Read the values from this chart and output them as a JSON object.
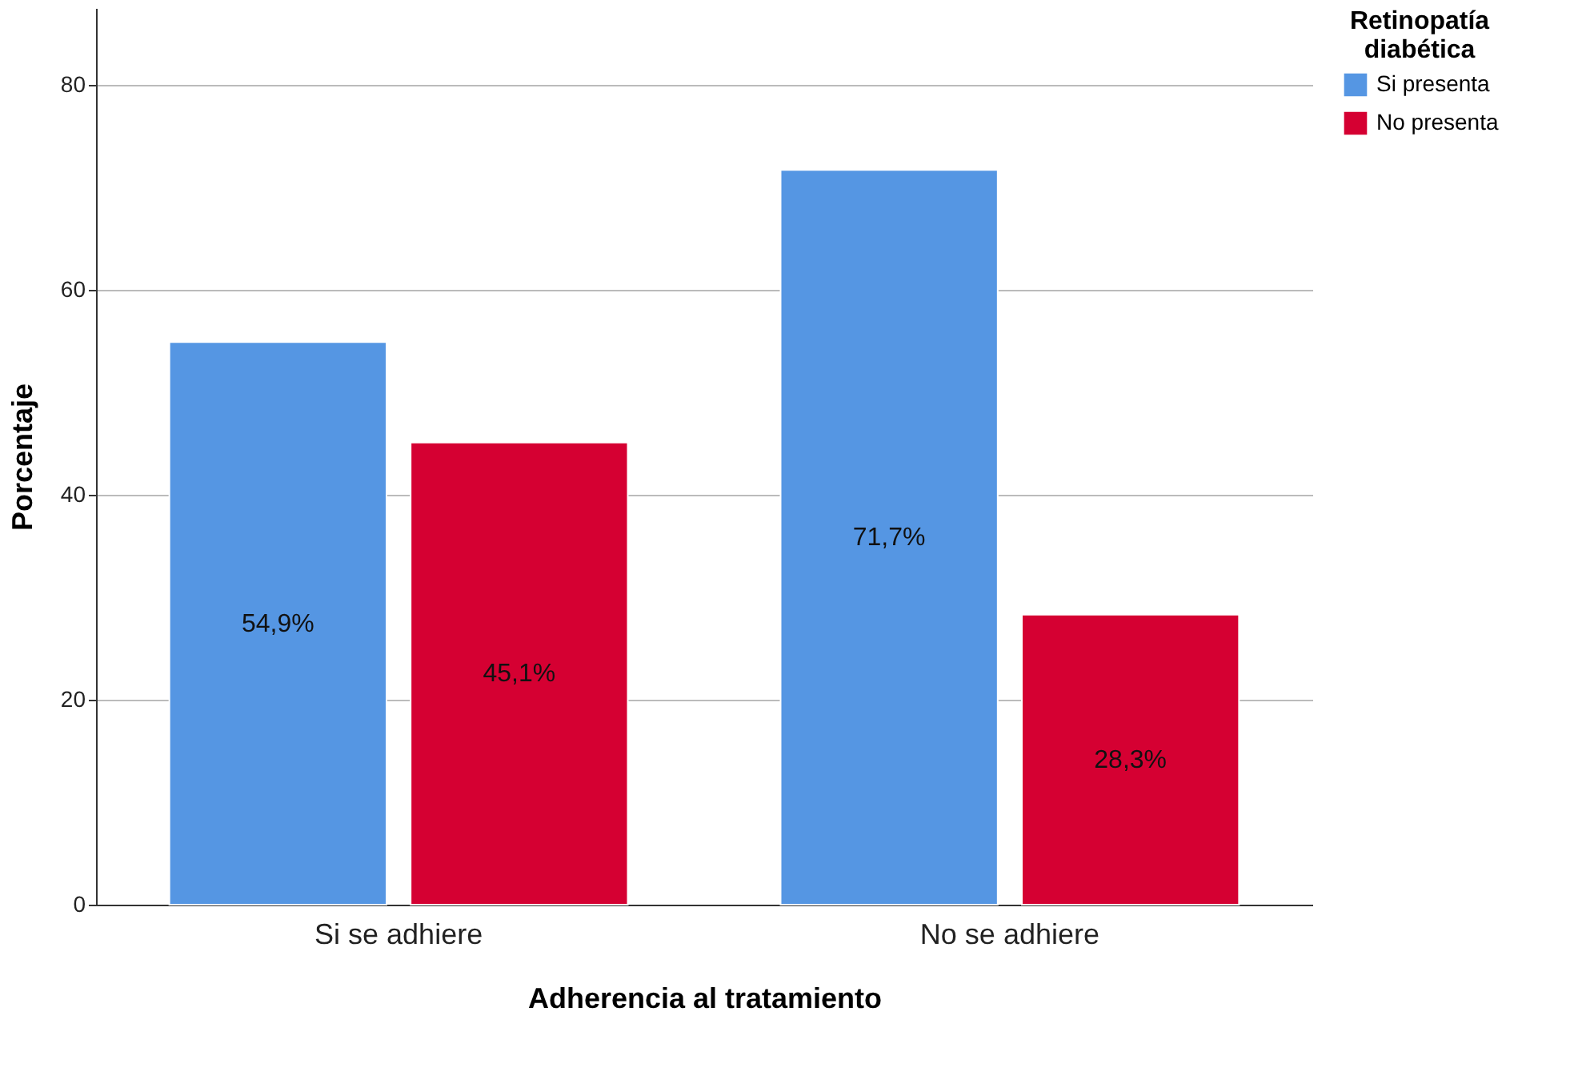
{
  "chart_data": {
    "type": "bar",
    "xlabel": "Adherencia al tratamiento",
    "ylabel": "Porcentaje",
    "legend_title": "Retinopatía diabética",
    "categories": [
      "Si se adhiere",
      "No se adhiere"
    ],
    "series": [
      {
        "name": "Si presenta",
        "color": "#5596e3",
        "values": [
          54.9,
          71.7
        ],
        "value_labels": [
          "54,9%",
          "71,7%"
        ]
      },
      {
        "name": "No presenta",
        "color": "#d50032",
        "values": [
          45.1,
          28.3
        ],
        "value_labels": [
          "45,1%",
          "28,3%"
        ]
      }
    ],
    "ylim": [
      0,
      87.5
    ],
    "yticks": [
      0,
      20,
      40,
      60,
      80
    ],
    "grid": "y",
    "legend": "top right"
  }
}
